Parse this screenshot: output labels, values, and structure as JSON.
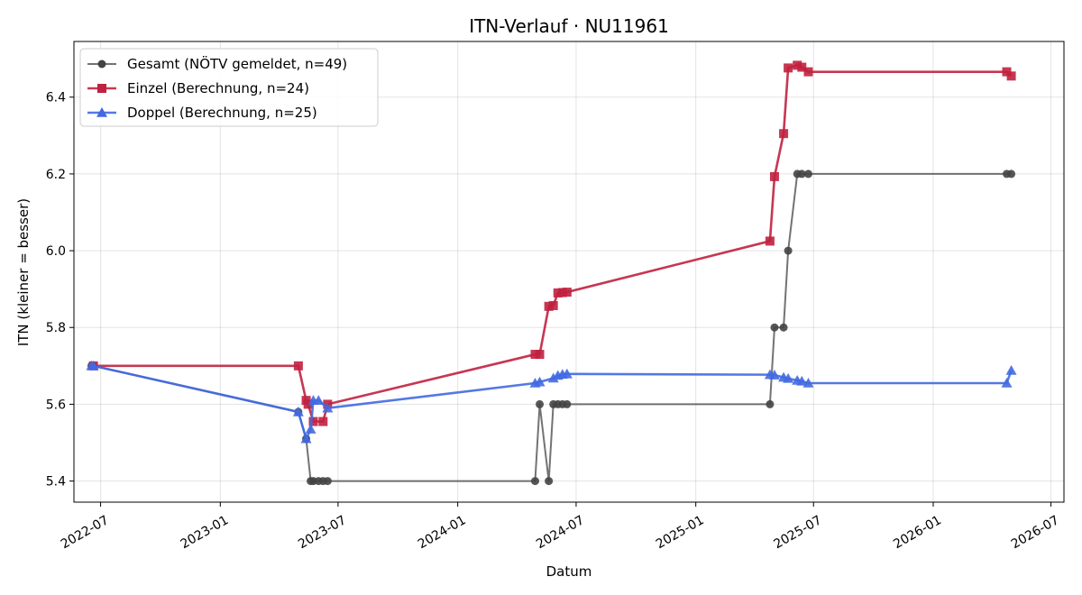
{
  "chart_data": {
    "type": "line",
    "title": "ITN-Verlauf · NU11961",
    "xlabel": "Datum",
    "ylabel": "ITN  (kleiner = besser)",
    "x_axis_type": "date",
    "xlim": [
      "2022-05-21",
      "2026-07-21"
    ],
    "ylim": [
      5.345,
      6.545
    ],
    "x_ticks": [
      "2022-07-01",
      "2023-01-01",
      "2023-07-01",
      "2024-01-01",
      "2024-07-01",
      "2025-01-01",
      "2025-07-01",
      "2026-01-01",
      "2026-07-01"
    ],
    "x_tick_labels": [
      "2022-07",
      "2023-01",
      "2023-07",
      "2024-01",
      "2024-07",
      "2025-01",
      "2025-07",
      "2026-01",
      "2026-07"
    ],
    "y_ticks": [
      5.4,
      5.6,
      5.8,
      6.0,
      6.2,
      6.4
    ],
    "y_tick_labels": [
      "5.4",
      "5.6",
      "5.8",
      "6.0",
      "6.2",
      "6.4"
    ],
    "grid": true,
    "legend_position": "top-left",
    "series": [
      {
        "name": "Gesamt (NÖTV gemeldet, n=49)",
        "color": "#444444",
        "marker": "circle",
        "points": [
          [
            "2022-06-17",
            5.7
          ],
          [
            "2022-06-20",
            5.7
          ],
          [
            "2023-05-01",
            5.58
          ],
          [
            "2023-05-13",
            5.51
          ],
          [
            "2023-05-20",
            5.4
          ],
          [
            "2023-05-24",
            5.4
          ],
          [
            "2023-06-01",
            5.4
          ],
          [
            "2023-06-08",
            5.4
          ],
          [
            "2023-06-15",
            5.4
          ],
          [
            "2024-04-29",
            5.4
          ],
          [
            "2024-05-06",
            5.6
          ],
          [
            "2024-05-20",
            5.4
          ],
          [
            "2024-05-27",
            5.6
          ],
          [
            "2024-06-03",
            5.6
          ],
          [
            "2024-06-10",
            5.6
          ],
          [
            "2024-06-17",
            5.6
          ],
          [
            "2025-04-25",
            5.6
          ],
          [
            "2025-05-02",
            5.8
          ],
          [
            "2025-05-16",
            5.8
          ],
          [
            "2025-05-23",
            6.0
          ],
          [
            "2025-06-06",
            6.2
          ],
          [
            "2025-06-13",
            6.2
          ],
          [
            "2025-06-23",
            6.2
          ],
          [
            "2026-04-24",
            6.2
          ],
          [
            "2026-05-01",
            6.2
          ]
        ]
      },
      {
        "name": "Einzel (Berechnung, n=24)",
        "color": "#c0213f",
        "marker": "square",
        "points": [
          [
            "2022-06-20",
            5.7
          ],
          [
            "2023-05-01",
            5.7
          ],
          [
            "2023-05-13",
            5.61
          ],
          [
            "2023-05-16",
            5.6
          ],
          [
            "2023-05-24",
            5.555
          ],
          [
            "2023-06-08",
            5.555
          ],
          [
            "2023-06-15",
            5.6
          ],
          [
            "2024-04-29",
            5.73
          ],
          [
            "2024-05-06",
            5.73
          ],
          [
            "2024-05-20",
            5.855
          ],
          [
            "2024-05-27",
            5.857
          ],
          [
            "2024-06-03",
            5.89
          ],
          [
            "2024-06-10",
            5.891
          ],
          [
            "2024-06-17",
            5.892
          ],
          [
            "2025-04-25",
            6.025
          ],
          [
            "2025-05-02",
            6.193
          ],
          [
            "2025-05-16",
            6.305
          ],
          [
            "2025-05-23",
            6.476
          ],
          [
            "2025-06-06",
            6.483
          ],
          [
            "2025-06-13",
            6.478
          ],
          [
            "2025-06-23",
            6.466
          ],
          [
            "2026-04-24",
            6.466
          ],
          [
            "2026-05-01",
            6.455
          ]
        ]
      },
      {
        "name": "Doppel (Berechnung, n=25)",
        "color": "#4169e1",
        "marker": "triangle",
        "points": [
          [
            "2022-06-17",
            5.7
          ],
          [
            "2022-06-20",
            5.7
          ],
          [
            "2023-05-01",
            5.58
          ],
          [
            "2023-05-13",
            5.51
          ],
          [
            "2023-05-20",
            5.535
          ],
          [
            "2023-05-24",
            5.61
          ],
          [
            "2023-06-01",
            5.61
          ],
          [
            "2023-06-15",
            5.59
          ],
          [
            "2024-04-29",
            5.655
          ],
          [
            "2024-05-06",
            5.658
          ],
          [
            "2024-05-27",
            5.668
          ],
          [
            "2024-06-03",
            5.675
          ],
          [
            "2024-06-10",
            5.678
          ],
          [
            "2024-06-17",
            5.679
          ],
          [
            "2025-04-25",
            5.677
          ],
          [
            "2025-05-02",
            5.676
          ],
          [
            "2025-05-16",
            5.67
          ],
          [
            "2025-05-23",
            5.667
          ],
          [
            "2025-06-06",
            5.662
          ],
          [
            "2025-06-13",
            5.66
          ],
          [
            "2025-06-23",
            5.655
          ],
          [
            "2026-04-24",
            5.655
          ],
          [
            "2026-05-01",
            5.688
          ]
        ]
      }
    ]
  }
}
